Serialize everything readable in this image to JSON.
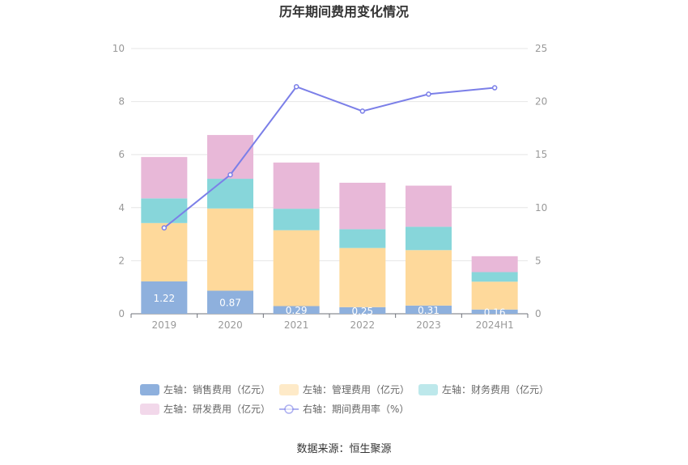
{
  "chart_data": {
    "type": "bar",
    "title": "历年期间费用变化情况",
    "categories": [
      "2019",
      "2020",
      "2021",
      "2022",
      "2023",
      "2024H1"
    ],
    "left_axis": {
      "ylim": [
        0,
        10
      ],
      "ticks": [
        "0",
        "2",
        "4",
        "6",
        "8",
        "10"
      ]
    },
    "right_axis": {
      "ylim": [
        0,
        25
      ],
      "ticks": [
        "0",
        "5",
        "10",
        "15",
        "20",
        "25"
      ]
    },
    "stacked": true,
    "series": [
      {
        "name": "左轴：销售费用（亿元）",
        "type": "bar",
        "axis": "left",
        "color": "#8eb0dd",
        "values": [
          1.22,
          0.87,
          0.29,
          0.25,
          0.31,
          0.16
        ],
        "labels": [
          "1.22",
          "0.87",
          "0.29",
          "0.25",
          "0.31",
          "0.16"
        ]
      },
      {
        "name": "左轴：管理费用（亿元）",
        "type": "bar",
        "axis": "left",
        "color": "#fed99b",
        "values": [
          2.2,
          3.1,
          2.86,
          2.23,
          2.09,
          1.05
        ]
      },
      {
        "name": "左轴：财务费用（亿元）",
        "type": "bar",
        "axis": "left",
        "color": "#87d6da",
        "values": [
          0.93,
          1.12,
          0.81,
          0.71,
          0.88,
          0.36
        ]
      },
      {
        "name": "左轴：研发费用（亿元）",
        "type": "bar",
        "axis": "left",
        "color": "#e8b8d8",
        "values": [
          1.56,
          1.65,
          1.74,
          1.75,
          1.55,
          0.6
        ]
      },
      {
        "name": "右轴：期间费用率（%）",
        "type": "line",
        "axis": "right",
        "color": "#7b7fe8",
        "values": [
          8.1,
          13.1,
          21.4,
          19.1,
          20.7,
          21.3
        ]
      }
    ],
    "legend_position": "bottom",
    "grid": true
  },
  "source": "数据来源：恒生聚源"
}
